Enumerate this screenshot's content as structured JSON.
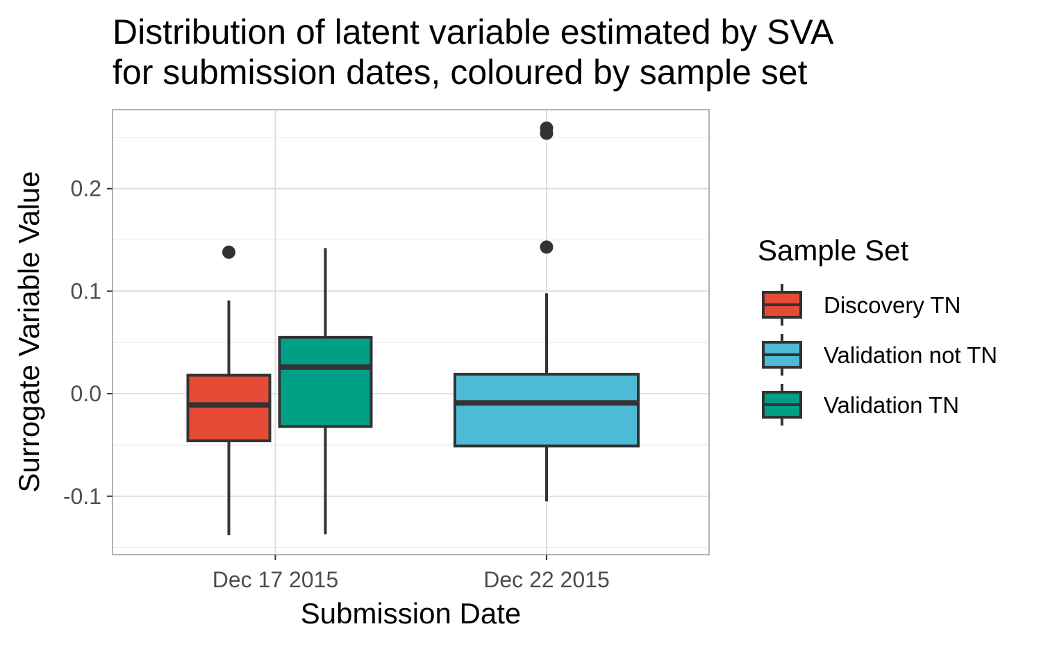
{
  "chart_data": {
    "type": "boxplot",
    "title": "Distribution of latent variable estimated by SVA for submission dates, coloured by sample set",
    "title_lines": [
      "Distribution of latent variable estimated by SVA",
      "for submission dates, coloured by sample set"
    ],
    "xlabel": "Submission Date",
    "ylabel": "Surrogate Variable Value",
    "categories": [
      "Dec 17 2015",
      "Dec 22 2015"
    ],
    "ylim": [
      -0.157,
      0.277
    ],
    "yticks": [
      -0.1,
      0.0,
      0.1,
      0.2
    ],
    "ytick_labels": [
      "-0.1",
      "0.0",
      "0.1",
      "0.2"
    ],
    "grid": true,
    "legend": {
      "title": "Sample Set",
      "position": "right",
      "entries": [
        "Discovery TN",
        "Validation not TN",
        "Validation TN"
      ]
    },
    "series": [
      {
        "name": "Discovery TN",
        "color": "#E64B35",
        "category": "Dec 17 2015",
        "dodge": "left",
        "whisker_low": -0.138,
        "q1": -0.046,
        "median": -0.011,
        "q3": 0.018,
        "whisker_high": 0.091,
        "outliers": [
          0.138
        ]
      },
      {
        "name": "Validation TN",
        "color": "#00A087",
        "category": "Dec 17 2015",
        "dodge": "right",
        "whisker_low": -0.137,
        "q1": -0.032,
        "median": 0.026,
        "q3": 0.055,
        "whisker_high": 0.142,
        "outliers": []
      },
      {
        "name": "Validation not TN",
        "color": "#4DBBD5",
        "category": "Dec 22 2015",
        "dodge": "full",
        "whisker_low": -0.105,
        "q1": -0.051,
        "median": -0.009,
        "q3": 0.019,
        "whisker_high": 0.098,
        "outliers": [
          0.259,
          0.254,
          0.143
        ]
      }
    ]
  }
}
